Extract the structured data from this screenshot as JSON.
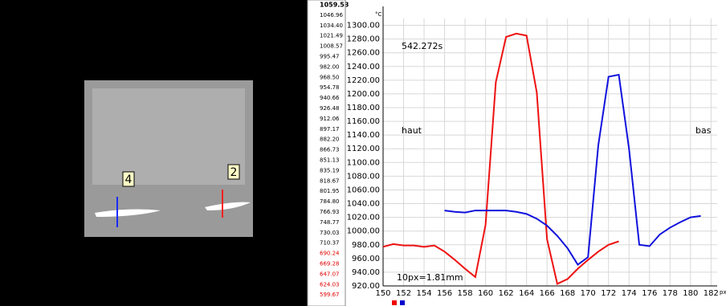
{
  "image_panel": {
    "markers": [
      "4",
      "2"
    ]
  },
  "scale_labels": [
    {
      "text": "1059.53",
      "color": "#000"
    },
    {
      "text": "1046.96",
      "color": "#000"
    },
    {
      "text": "1034.40",
      "color": "#000"
    },
    {
      "text": "1021.49",
      "color": "#000"
    },
    {
      "text": "1008.57",
      "color": "#000"
    },
    {
      "text": "995.47",
      "color": "#000"
    },
    {
      "text": "982.00",
      "color": "#000"
    },
    {
      "text": "968.50",
      "color": "#000"
    },
    {
      "text": "954.78",
      "color": "#000"
    },
    {
      "text": "940.66",
      "color": "#000"
    },
    {
      "text": "926.48",
      "color": "#000"
    },
    {
      "text": "912.06",
      "color": "#000"
    },
    {
      "text": "897.17",
      "color": "#000"
    },
    {
      "text": "882.20",
      "color": "#000"
    },
    {
      "text": "866.73",
      "color": "#000"
    },
    {
      "text": "851.13",
      "color": "#000"
    },
    {
      "text": "835.19",
      "color": "#000"
    },
    {
      "text": "818.67",
      "color": "#000"
    },
    {
      "text": "801.95",
      "color": "#000"
    },
    {
      "text": "784.80",
      "color": "#000"
    },
    {
      "text": "766.93",
      "color": "#000"
    },
    {
      "text": "748.77",
      "color": "#000"
    },
    {
      "text": "730.03",
      "color": "#000"
    },
    {
      "text": "710.37",
      "color": "#000"
    },
    {
      "text": "690.24",
      "color": "#e00000"
    },
    {
      "text": "669.28",
      "color": "#e00000"
    },
    {
      "text": "647.07",
      "color": "#e00000"
    },
    {
      "text": "624.03",
      "color": "#e00000"
    },
    {
      "text": "599.67",
      "color": "#e00000"
    }
  ],
  "chart_data": {
    "type": "line",
    "y_unit": "°C",
    "x_unit": "px",
    "annotations": {
      "time": "542.272s",
      "left": "haut",
      "right": "bas",
      "scale": "10px=1.81mm"
    },
    "xlim": [
      150,
      182.6
    ],
    "ylim": [
      920,
      1310
    ],
    "grid": true,
    "xticks": [
      150,
      152,
      154,
      156,
      158,
      160,
      162,
      164,
      166,
      168,
      170,
      172,
      174,
      176,
      178,
      180,
      182
    ],
    "yticks": [
      {
        "value": 920,
        "label": "920.00"
      },
      {
        "value": 940,
        "label": "940.00"
      },
      {
        "value": 960,
        "label": "960.00"
      },
      {
        "value": 980,
        "label": "980.00"
      },
      {
        "value": 1000,
        "label": "1000.00"
      },
      {
        "value": 1020,
        "label": "1020.00"
      },
      {
        "value": 1040,
        "label": "1040.00"
      },
      {
        "value": 1060,
        "label": "1060.00"
      },
      {
        "value": 1080,
        "label": "1080.00"
      },
      {
        "value": 1100,
        "label": "1100.00"
      },
      {
        "value": 1120,
        "label": "1120.00"
      },
      {
        "value": 1140,
        "label": "1140.00"
      },
      {
        "value": 1160,
        "label": "1160.00"
      },
      {
        "value": 1180,
        "label": "1180.00"
      },
      {
        "value": 1200,
        "label": "1200.00"
      },
      {
        "value": 1220,
        "label": "1220.00"
      },
      {
        "value": 1240,
        "label": "1240.00"
      },
      {
        "value": 1260,
        "label": "1260.00"
      },
      {
        "value": 1280,
        "label": "1280.00"
      },
      {
        "value": 1300,
        "label": "1300.00"
      }
    ],
    "series": [
      {
        "color": "#ee1111",
        "x": [
          150,
          151,
          152,
          153,
          154,
          155,
          156,
          157,
          158,
          159,
          160,
          161,
          162,
          163,
          164,
          165,
          166,
          167,
          168,
          169,
          170,
          171,
          172,
          173
        ],
        "values": [
          977,
          981,
          979,
          979,
          977,
          979,
          970,
          958,
          945,
          933,
          1009,
          1217,
          1283,
          1288,
          1285,
          1202,
          988,
          923,
          930,
          945,
          958,
          970,
          980,
          985
        ]
      },
      {
        "color": "#1111dd",
        "x": [
          156,
          157,
          158,
          159,
          160,
          161,
          162,
          163,
          164,
          165,
          166,
          167,
          168,
          169,
          170,
          171,
          172,
          173,
          174,
          175,
          176,
          177,
          178,
          179,
          180,
          181
        ],
        "values": [
          1030,
          1028,
          1027,
          1030,
          1030,
          1030,
          1030,
          1028,
          1025,
          1018,
          1008,
          993,
          975,
          951,
          962,
          1125,
          1225,
          1228,
          1120,
          980,
          978,
          995,
          1005,
          1013,
          1020,
          1022
        ]
      }
    ]
  }
}
